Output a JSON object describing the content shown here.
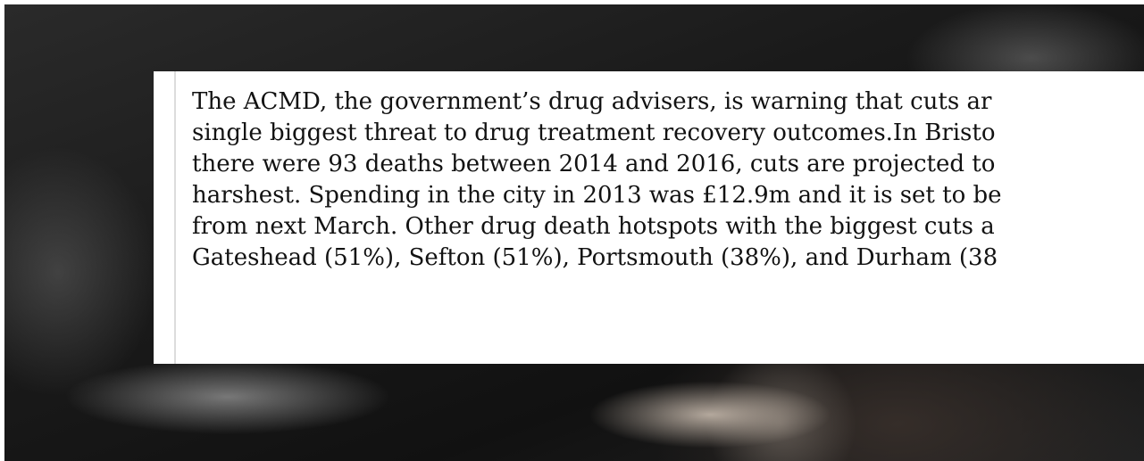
{
  "quote": {
    "lines": [
      "The ACMD, the government’s drug advisers, is warning that cuts ar",
      "single biggest threat to drug treatment recovery outcomes.In Bristo",
      "there were 93 deaths between 2014 and 2016, cuts are projected to",
      "harshest. Spending in the city in 2013 was £12.9m and it is set to be",
      "from next March. Other drug death hotspots with the biggest cuts a",
      "Gateshead (51%), Sefton (51%), Portsmouth (38%), and Durham (38"
    ]
  }
}
